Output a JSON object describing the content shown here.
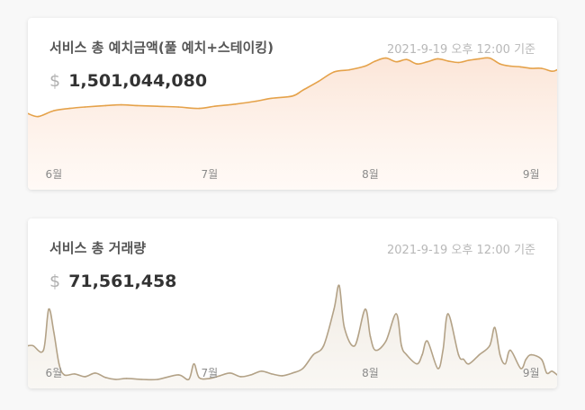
{
  "colors": {
    "page_background": "#f8f8f8",
    "card_background": "#ffffff",
    "deposit_line": "#e5a24a",
    "deposit_fill_top": "#fbe3d4",
    "volume_line": "#b3a287",
    "volume_fill_top": "#efe9e0"
  },
  "deposit_card": {
    "title": "서비스 총 예치금액(풀 예치+스테이킹)",
    "timestamp": "2021-9-19 오후 12:00 기준",
    "currency_symbol": "$",
    "amount": "1,501,044,080"
  },
  "volume_card": {
    "title": "서비스 총 거래량",
    "timestamp": "2021-9-19 오후 12:00 기준",
    "currency_symbol": "$",
    "amount": "71,561,458"
  },
  "chart_data": [
    {
      "type": "area",
      "title": "서비스 총 예치금액(풀 예치+스테이킹)",
      "xlabel": "",
      "ylabel": "",
      "grid": false,
      "legend": "none",
      "x_tick_labels": [
        "6월",
        "7월",
        "8월",
        "9월"
      ],
      "x_tick_positions": [
        0,
        30,
        61,
        92
      ],
      "xlim": [
        -5,
        97
      ],
      "ylim": [
        0,
        1700000000
      ],
      "series": [
        {
          "x": [
            -5,
            -3,
            0,
            3,
            6,
            10,
            13,
            16,
            20,
            24,
            28,
            31,
            35,
            39,
            42,
            46,
            48,
            51,
            54,
            57,
            60,
            62,
            64,
            66,
            68,
            70,
            72,
            74,
            76,
            78,
            80,
            82,
            84,
            86,
            88,
            90,
            92,
            94,
            96,
            97
          ],
          "values": [
            760000000,
            720000000,
            800000000,
            830000000,
            850000000,
            870000000,
            880000000,
            870000000,
            860000000,
            850000000,
            830000000,
            860000000,
            890000000,
            930000000,
            970000000,
            1000000000,
            1080000000,
            1200000000,
            1330000000,
            1360000000,
            1410000000,
            1480000000,
            1520000000,
            1470000000,
            1500000000,
            1440000000,
            1470000000,
            1510000000,
            1480000000,
            1460000000,
            1490000000,
            1510000000,
            1520000000,
            1440000000,
            1410000000,
            1400000000,
            1380000000,
            1380000000,
            1340000000,
            1360000000
          ]
        }
      ]
    },
    {
      "type": "area",
      "title": "서비스 총 거래량",
      "xlabel": "",
      "ylabel": "",
      "grid": false,
      "legend": "none",
      "x_tick_labels": [
        "6월",
        "7월",
        "8월",
        "9월"
      ],
      "x_tick_positions": [
        0,
        30,
        61,
        92
      ],
      "xlim": [
        -5,
        97
      ],
      "ylim": [
        0,
        150000000
      ],
      "series": [
        {
          "x": [
            -5,
            -4,
            -2,
            -1,
            0,
            1,
            2,
            4,
            6,
            8,
            10,
            12,
            14,
            17,
            20,
            24,
            26,
            27,
            28,
            30,
            32,
            34,
            36,
            38,
            40,
            42,
            44,
            46,
            48,
            50,
            52,
            54,
            55,
            56,
            58,
            60,
            61,
            62,
            64,
            66,
            67,
            68,
            70,
            71,
            72,
            74,
            75,
            76,
            78,
            79,
            80,
            82,
            84,
            85,
            86,
            87,
            88,
            90,
            91,
            92,
            94,
            95,
            96,
            97
          ],
          "values": [
            40000000,
            40000000,
            35000000,
            80000000,
            55000000,
            20000000,
            8000000,
            9000000,
            6000000,
            10000000,
            5000000,
            3000000,
            4000000,
            3000000,
            3000000,
            8000000,
            3000000,
            20000000,
            5000000,
            4000000,
            7000000,
            10000000,
            6000000,
            8000000,
            12000000,
            9000000,
            7000000,
            10000000,
            15000000,
            30000000,
            40000000,
            80000000,
            106000000,
            60000000,
            40000000,
            80000000,
            50000000,
            35000000,
            45000000,
            75000000,
            40000000,
            30000000,
            20000000,
            30000000,
            45000000,
            15000000,
            35000000,
            75000000,
            30000000,
            25000000,
            20000000,
            30000000,
            40000000,
            60000000,
            30000000,
            20000000,
            35000000,
            15000000,
            25000000,
            30000000,
            25000000,
            10000000,
            12000000,
            8000000
          ]
        }
      ]
    }
  ]
}
